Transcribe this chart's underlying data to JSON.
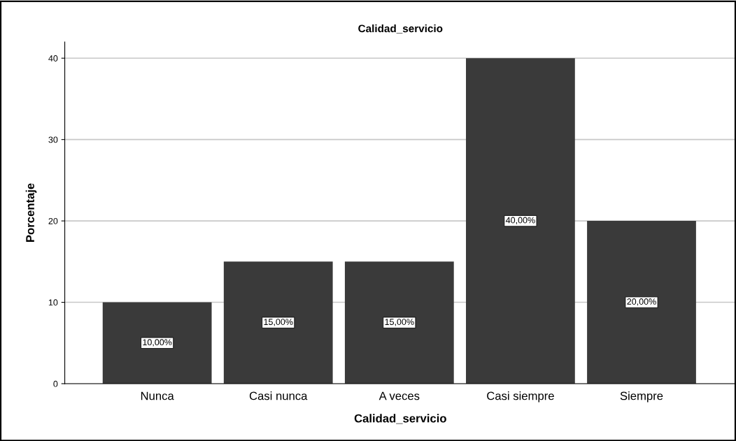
{
  "chart_data": {
    "type": "bar",
    "title": "Calidad_servicio",
    "xlabel": "Calidad_servicio",
    "ylabel": "Porcentaje",
    "categories": [
      "Nunca",
      "Casi nunca",
      "A veces",
      "Casi siempre",
      "Siempre"
    ],
    "values": [
      10,
      15,
      15,
      40,
      20
    ],
    "value_labels": [
      "10,00%",
      "15,00%",
      "15,00%",
      "40,00%",
      "20,00%"
    ],
    "color": "#3a3a3a",
    "ylim": [
      0,
      42
    ],
    "yticks": [
      0,
      10,
      20,
      30,
      40
    ],
    "grid": "y",
    "legend": false
  }
}
